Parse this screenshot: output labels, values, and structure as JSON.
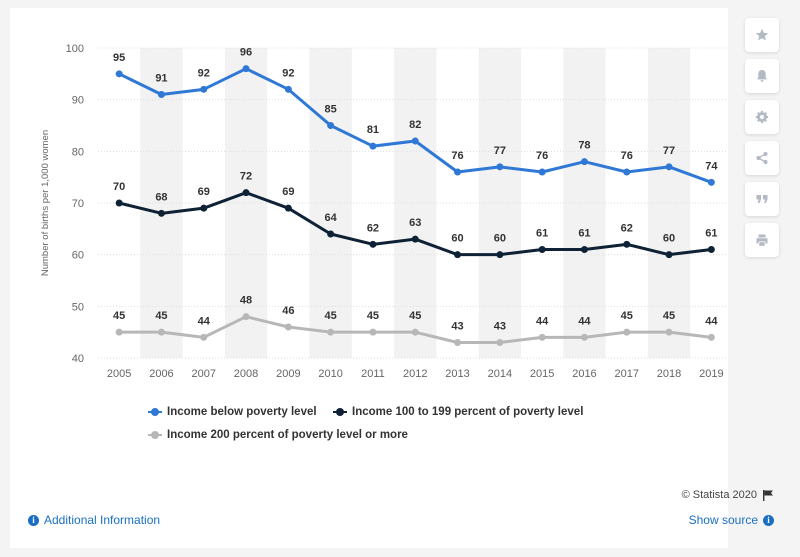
{
  "chart_data": {
    "type": "line",
    "title": "",
    "xlabel": "",
    "ylabel": "Number of births per 1,000 women",
    "ylim": [
      40,
      100
    ],
    "yticks": [
      40,
      50,
      60,
      70,
      80,
      90,
      100
    ],
    "grid": true,
    "legend_position": "bottom",
    "categories": [
      "2005",
      "2006",
      "2007",
      "2008",
      "2009",
      "2010",
      "2011",
      "2012",
      "2013",
      "2014",
      "2015",
      "2016",
      "2017",
      "2018",
      "2019"
    ],
    "series": [
      {
        "name": "Income below poverty level",
        "color": "#2f78d6",
        "values": [
          95,
          91,
          92,
          96,
          92,
          85,
          81,
          82,
          76,
          77,
          76,
          78,
          76,
          77,
          74
        ]
      },
      {
        "name": "Income 100 to 199 percent of poverty level",
        "color": "#0e2135",
        "values": [
          70,
          68,
          69,
          72,
          69,
          64,
          62,
          63,
          60,
          60,
          61,
          61,
          62,
          60,
          61
        ]
      },
      {
        "name": "Income 200 percent of poverty level or more",
        "color": "#b7b7b7",
        "values": [
          45,
          45,
          44,
          48,
          46,
          45,
          45,
          45,
          43,
          43,
          44,
          44,
          45,
          45,
          44
        ]
      }
    ]
  },
  "footer": {
    "credit": "© Statista 2020",
    "additional_info": "Additional Information",
    "show_source": "Show source"
  },
  "icons": {
    "sidebar": [
      "star-icon",
      "bell-icon",
      "gear-icon",
      "share-icon",
      "quote-icon",
      "print-icon"
    ],
    "flag": "flag-icon",
    "info": "info-icon"
  }
}
